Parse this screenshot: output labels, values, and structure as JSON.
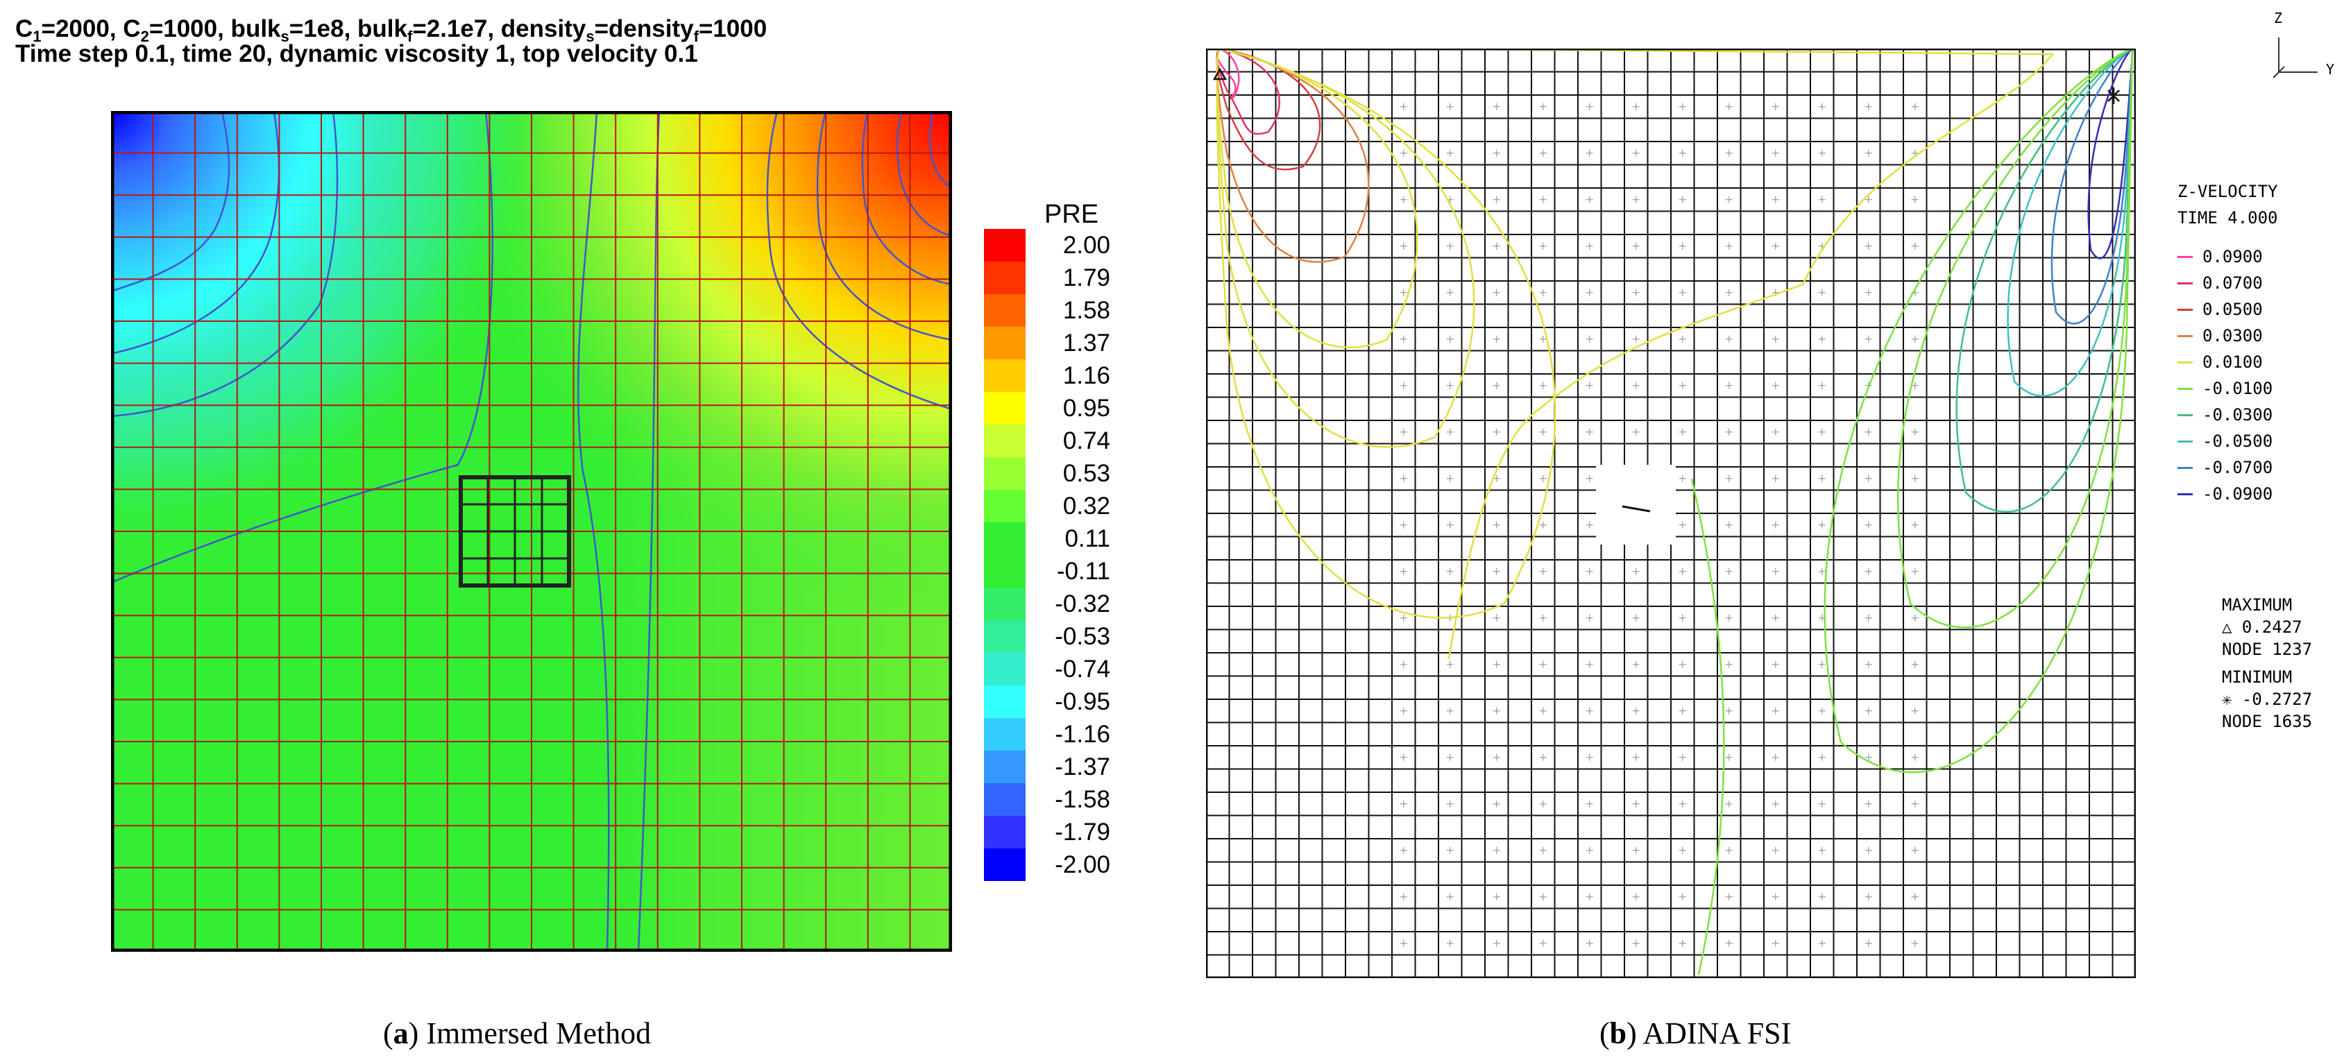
{
  "panel_a": {
    "header_line1_parts": [
      "C",
      "1",
      "=2000, C",
      "2",
      "=1000, bulk",
      "s",
      "=1e8, bulk",
      "f",
      "=2.1e7, density",
      "s",
      "=density",
      "f",
      "=1000"
    ],
    "header_line2": "Time step 0.1, time 20, dynamic viscosity 1, top velocity 0.1",
    "legend_title": "PRE",
    "caption_letter": "a",
    "caption_text": "Immersed Method"
  },
  "panel_b": {
    "axis_z": "Z",
    "axis_y": "Y",
    "legend_title_line1": "Z-VELOCITY",
    "legend_title_line2": "TIME 4.000",
    "max_label": "MAXIMUM",
    "max_value": "0.2427",
    "max_node": "NODE 1237",
    "min_label": "MINIMUM",
    "min_value": "-0.2727",
    "min_node": "NODE 1635",
    "max_marker": "triangle",
    "min_marker": "asterisk",
    "caption_letter": "b",
    "caption_text": "ADINA FSI"
  },
  "chart_data": [
    {
      "type": "heatmap",
      "title": "Pressure contour (Immersed Method)",
      "field": "PRE",
      "colorbar_levels": [
        2.0,
        1.79,
        1.58,
        1.37,
        1.16,
        0.95,
        0.74,
        0.53,
        0.32,
        0.11,
        -0.11,
        -0.32,
        -0.53,
        -0.74,
        -0.95,
        -1.16,
        -1.37,
        -1.58,
        -1.79,
        -2.0
      ],
      "colorbar_labels": [
        "2.00",
        "1.79",
        "1.58",
        "1.37",
        "1.16",
        "0.95",
        "0.74",
        "0.53",
        "0.32",
        "0.11",
        "-0.11",
        "-0.32",
        "-0.53",
        "-0.74",
        "-0.95",
        "-1.16",
        "-1.37",
        "-1.58",
        "-1.79",
        "-2.00"
      ],
      "colorbar_colors": [
        "#ff0000",
        "#ff3300",
        "#ff6600",
        "#ff9900",
        "#ffcc00",
        "#ffff00",
        "#ccff33",
        "#99ff33",
        "#66ff33",
        "#33ee33",
        "#33ee33",
        "#33ee66",
        "#33ee99",
        "#33eecc",
        "#33ffff",
        "#33ccff",
        "#3399ff",
        "#3366ff",
        "#3333ff",
        "#0000ff"
      ],
      "fluid_mesh": {
        "cols": 20,
        "rows": 20
      },
      "solid_mesh": {
        "cols": 4,
        "rows": 4
      },
      "pressure_range": [
        -2.0,
        2.0
      ]
    },
    {
      "type": "contour",
      "title": "Z-VELOCITY contour (ADINA FSI)",
      "field": "Z-VELOCITY",
      "time": "4.000",
      "legend_labels": [
        "0.0900",
        "0.0700",
        "0.0500",
        "0.0300",
        "0.0100",
        "-0.0100",
        "-0.0300",
        "-0.0500",
        "-0.0700",
        "-0.0900"
      ],
      "legend_colors": [
        "#ff40a0",
        "#e0306a",
        "#d04040",
        "#e08040",
        "#e0e040",
        "#80e040",
        "#40c080",
        "#40c0c0",
        "#4080d0",
        "#3030b0"
      ],
      "legend_values": [
        0.09,
        0.07,
        0.05,
        0.03,
        0.01,
        -0.01,
        -0.03,
        -0.05,
        -0.07,
        -0.09
      ],
      "maximum": 0.2427,
      "minimum": -0.2727,
      "max_node": 1237,
      "min_node": 1635,
      "fluid_mesh": {
        "cols": 40,
        "rows": 40
      }
    }
  ]
}
